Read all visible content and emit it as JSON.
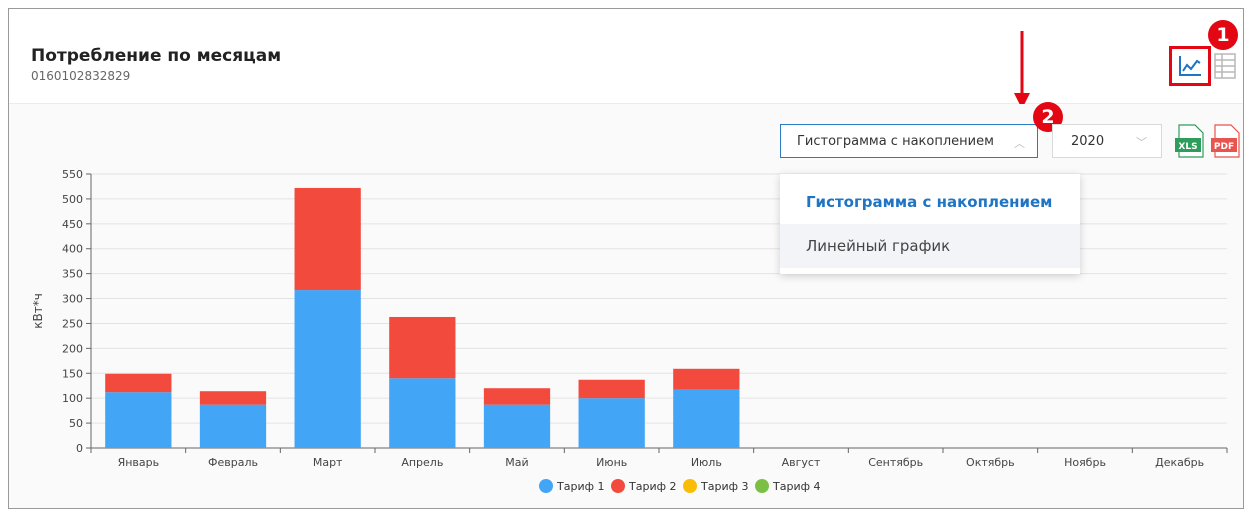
{
  "header": {
    "title": "Потребление по месяцам",
    "subtitle": "0160102832829"
  },
  "annotations": {
    "badge1": "1",
    "badge2": "2"
  },
  "controls": {
    "chart_type_value": "Гистограмма с накоплением",
    "year_value": "2020",
    "export_xls_label": "XLS",
    "export_pdf_label": "PDF"
  },
  "dropdown": {
    "items": [
      {
        "label": "Гистограмма с накоплением",
        "selected": true
      },
      {
        "label": "Линейный график",
        "selected": false
      }
    ]
  },
  "colors": {
    "accent": "#1f74c4",
    "highlight": "#e30613",
    "tariff1": "#42a5f5",
    "tariff2": "#f24a3d",
    "tariff3": "#fbbc05",
    "tariff4": "#7cbf45"
  },
  "chart_data": {
    "type": "bar",
    "stacked": true,
    "ylabel": "кВт*ч",
    "xlabel": "",
    "ylim": [
      0,
      550
    ],
    "yticks": [
      0,
      50,
      100,
      150,
      200,
      250,
      300,
      350,
      400,
      450,
      500,
      550
    ],
    "grid": true,
    "legend": "bottom",
    "categories": [
      "Январь",
      "Февраль",
      "Март",
      "Апрель",
      "Май",
      "Июнь",
      "Июль",
      "Август",
      "Сентябрь",
      "Октябрь",
      "Ноябрь",
      "Декабрь"
    ],
    "series": [
      {
        "name": "Тариф 1",
        "color": "#42a5f5",
        "values": [
          112,
          87,
          317,
          140,
          87,
          100,
          117,
          null,
          null,
          null,
          null,
          null
        ]
      },
      {
        "name": "Тариф 2",
        "color": "#f24a3d",
        "values": [
          37,
          27,
          205,
          123,
          33,
          37,
          42,
          null,
          null,
          null,
          null,
          null
        ]
      },
      {
        "name": "Тариф 3",
        "color": "#fbbc05",
        "values": [
          null,
          null,
          null,
          null,
          null,
          null,
          null,
          null,
          null,
          null,
          null,
          null
        ]
      },
      {
        "name": "Тариф 4",
        "color": "#7cbf45",
        "values": [
          null,
          null,
          null,
          null,
          null,
          null,
          null,
          null,
          null,
          null,
          null,
          null
        ]
      }
    ]
  }
}
